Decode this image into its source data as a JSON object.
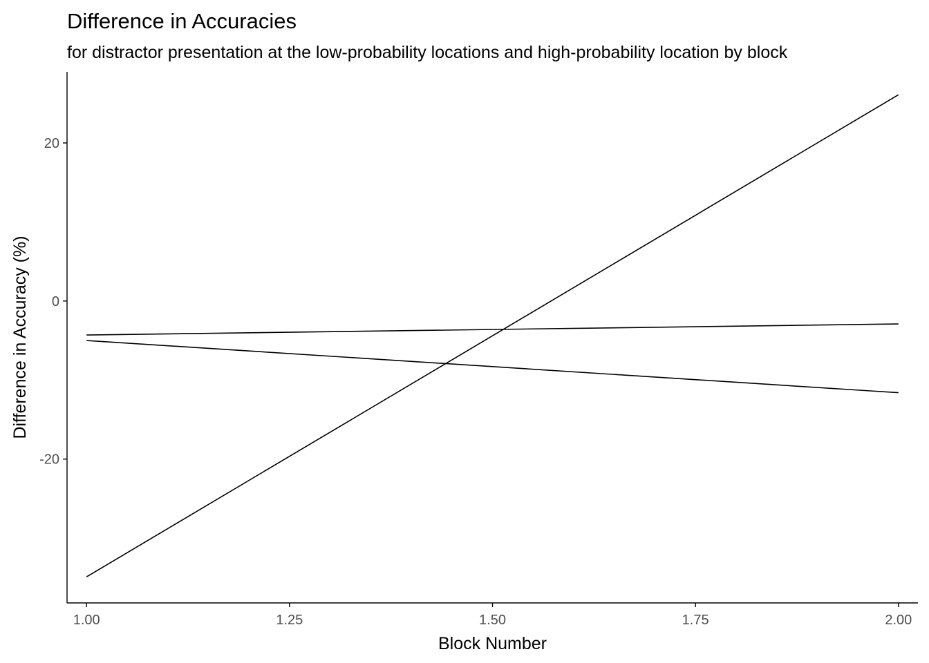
{
  "chart_data": {
    "type": "line",
    "title": "Difference in Accuracies",
    "subtitle": "for distractor presentation at the low-probability locations and high-probability location by block",
    "xlabel": "Block Number",
    "ylabel": "Difference in Accuracy (%)",
    "xlim": [
      0.976,
      2.024
    ],
    "ylim": [
      -38.2,
      29.0
    ],
    "x_ticks": [
      1.0,
      1.25,
      1.5,
      1.75,
      2.0
    ],
    "x_tick_labels": [
      "1.00",
      "1.25",
      "1.50",
      "1.75",
      "2.00"
    ],
    "y_ticks": [
      -20,
      0,
      20
    ],
    "y_tick_labels": [
      "-20",
      "0",
      "20"
    ],
    "grid": false,
    "legend": "none",
    "line_color": "#000000",
    "series": [
      {
        "x": [
          1.0,
          2.0
        ],
        "values": [
          -34.9,
          26.1
        ]
      },
      {
        "x": [
          1.0,
          2.0
        ],
        "values": [
          -4.3,
          -2.9
        ]
      },
      {
        "x": [
          1.0,
          2.0
        ],
        "values": [
          -5.0,
          -11.6
        ]
      }
    ]
  }
}
